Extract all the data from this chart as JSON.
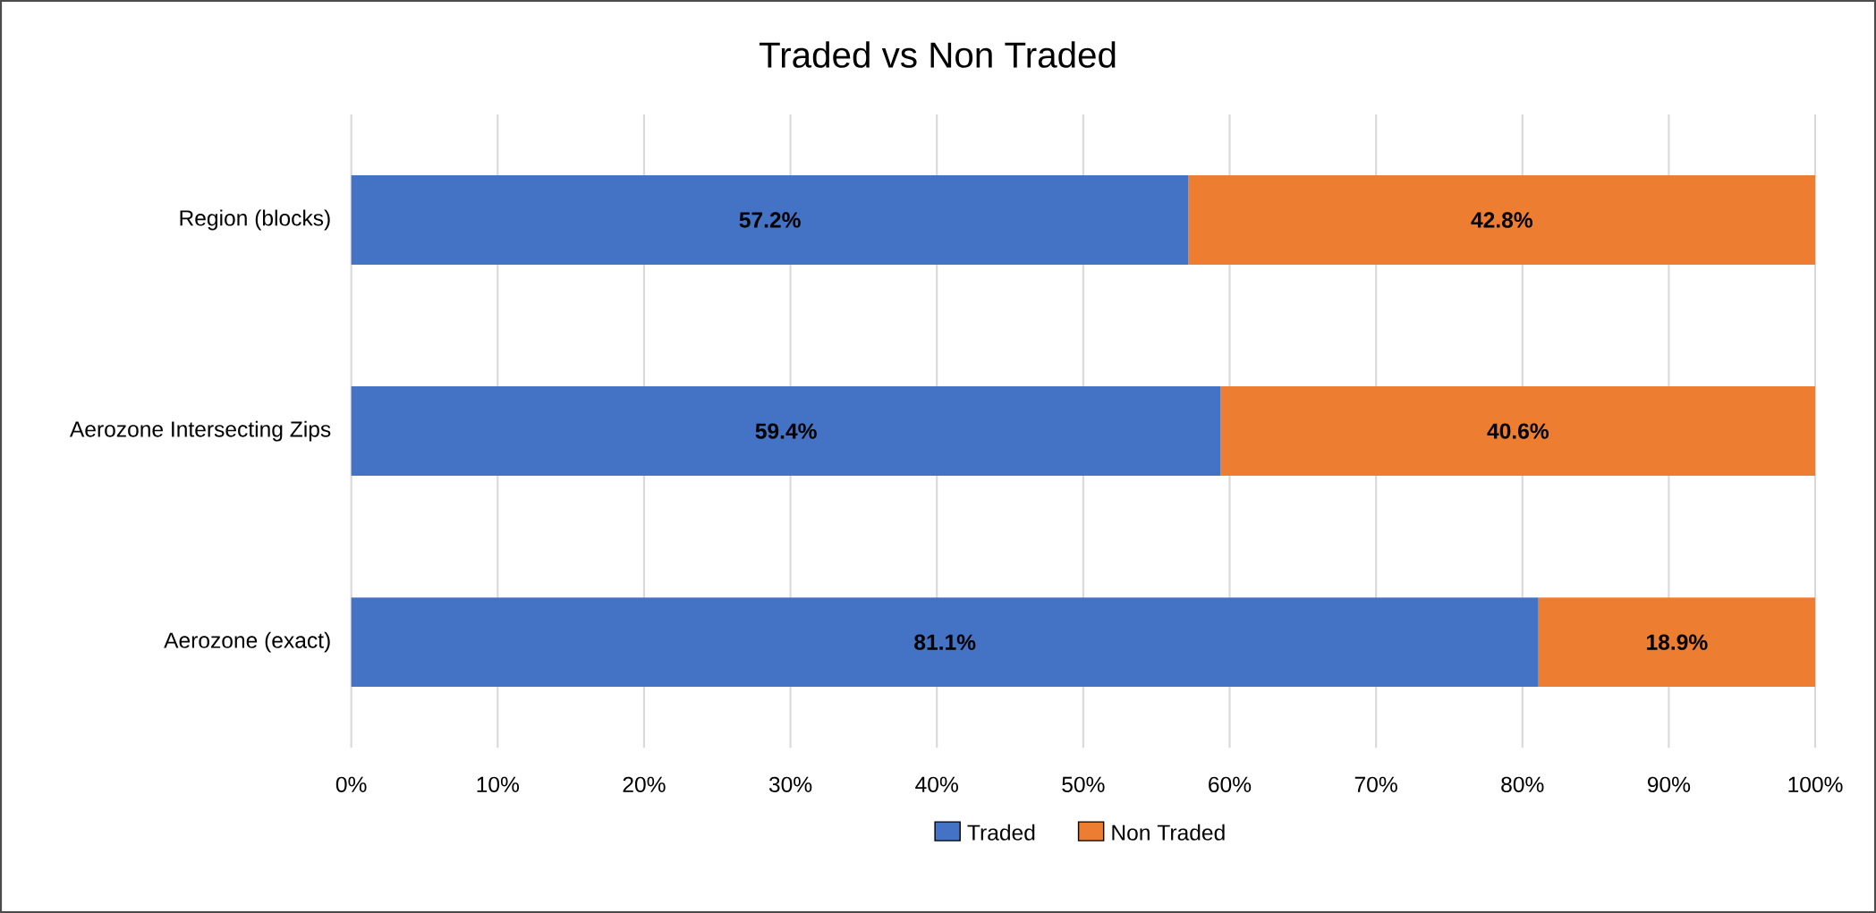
{
  "chart_data": {
    "type": "bar",
    "orientation": "horizontal",
    "stacked": true,
    "title": "Traded vs Non Traded",
    "categories": [
      "Region (blocks)",
      "Aerozone Intersecting Zips",
      "Aerozone (exact)"
    ],
    "series": [
      {
        "name": "Traded",
        "color": "#4472c4",
        "values": [
          57.2,
          59.4,
          81.1
        ],
        "value_labels": [
          "57.2%",
          "59.4%",
          "81.1%"
        ]
      },
      {
        "name": "Non Traded",
        "color": "#ed7d31",
        "values": [
          42.8,
          40.6,
          18.9
        ],
        "value_labels": [
          "42.8%",
          "40.6%",
          "18.9%"
        ]
      }
    ],
    "xlim": [
      0,
      100
    ],
    "xticks": [
      {
        "value": 0,
        "label": "0%"
      },
      {
        "value": 10,
        "label": "10%"
      },
      {
        "value": 20,
        "label": "20%"
      },
      {
        "value": 30,
        "label": "30%"
      },
      {
        "value": 40,
        "label": "40%"
      },
      {
        "value": 50,
        "label": "50%"
      },
      {
        "value": 60,
        "label": "60%"
      },
      {
        "value": 70,
        "label": "70%"
      },
      {
        "value": 80,
        "label": "80%"
      },
      {
        "value": 90,
        "label": "90%"
      },
      {
        "value": 100,
        "label": "100%"
      }
    ],
    "grid": "x",
    "legend": "bottom"
  }
}
